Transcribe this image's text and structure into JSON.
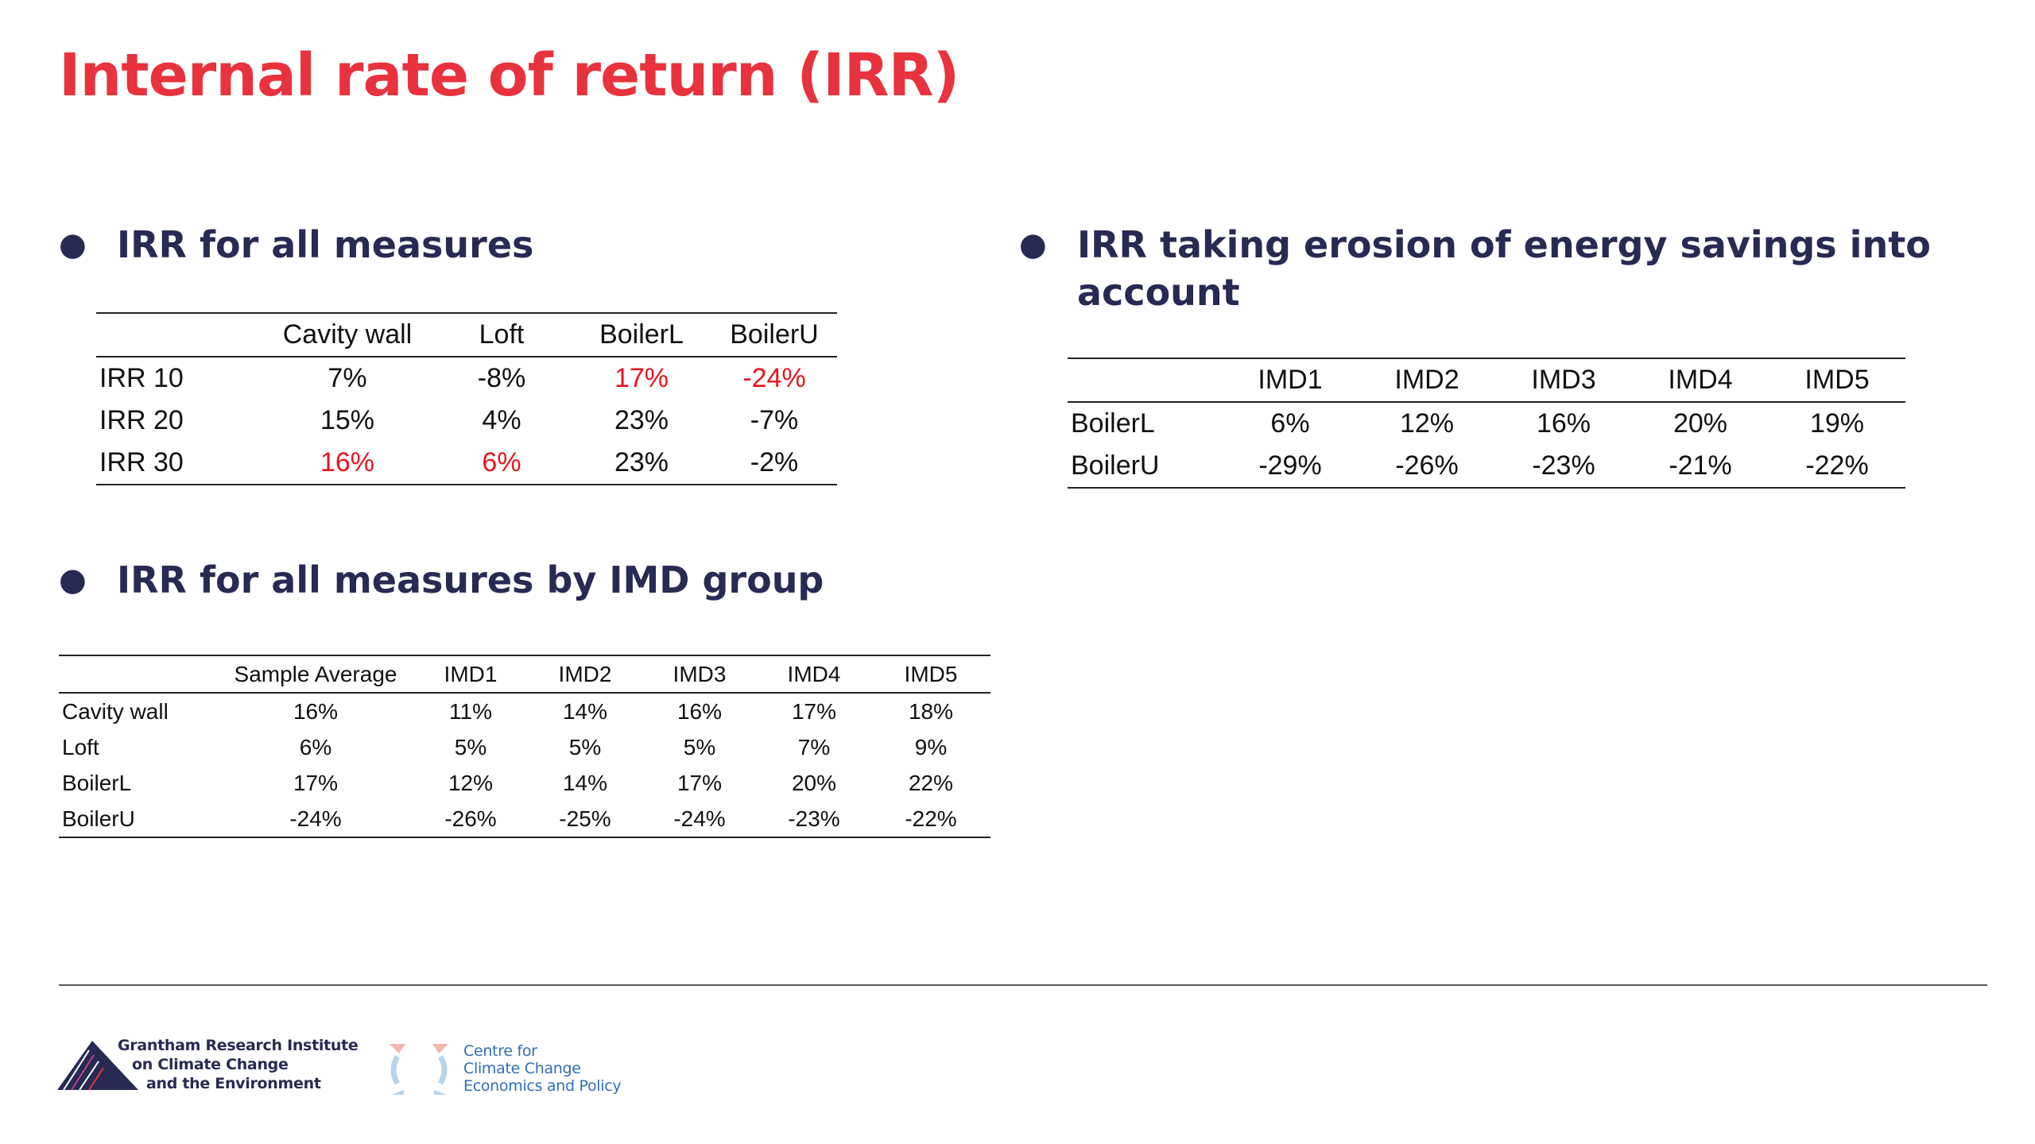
{
  "title": "Internal rate of return (IRR)",
  "bullets": {
    "b1": "IRR for all measures",
    "b2": "IRR taking erosion of energy savings into account",
    "b3": "IRR for all measures by IMD group"
  },
  "table1": {
    "headers": [
      "",
      "Cavity wall",
      "Loft",
      "BoilerL",
      "BoilerU"
    ],
    "rows": [
      {
        "label": "IRR 10",
        "cells": [
          "7%",
          "-8%",
          "17%",
          "-24%"
        ],
        "red": [
          false,
          false,
          true,
          true
        ]
      },
      {
        "label": "IRR 20",
        "cells": [
          "15%",
          "4%",
          "23%",
          "-7%"
        ],
        "red": [
          false,
          false,
          false,
          false
        ]
      },
      {
        "label": "IRR 30",
        "cells": [
          "16%",
          "6%",
          "23%",
          "-2%"
        ],
        "red": [
          true,
          true,
          false,
          false
        ]
      }
    ]
  },
  "table2": {
    "headers": [
      "",
      "IMD1",
      "IMD2",
      "IMD3",
      "IMD4",
      "IMD5"
    ],
    "rows": [
      {
        "label": "BoilerL",
        "cells": [
          "6%",
          "12%",
          "16%",
          "20%",
          "19%"
        ]
      },
      {
        "label": "BoilerU",
        "cells": [
          "-29%",
          "-26%",
          "-23%",
          "-21%",
          "-22%"
        ]
      }
    ]
  },
  "table3": {
    "headers": [
      "",
      "Sample Average",
      "IMD1",
      "IMD2",
      "IMD3",
      "IMD4",
      "IMD5"
    ],
    "rows": [
      {
        "label": "Cavity wall",
        "cells": [
          "16%",
          "11%",
          "14%",
          "16%",
          "17%",
          "18%"
        ]
      },
      {
        "label": "Loft",
        "cells": [
          "6%",
          "5%",
          "5%",
          "5%",
          "7%",
          "9%"
        ]
      },
      {
        "label": "BoilerL",
        "cells": [
          "17%",
          "12%",
          "14%",
          "17%",
          "20%",
          "22%"
        ]
      },
      {
        "label": "BoilerU",
        "cells": [
          "-24%",
          "-26%",
          "-25%",
          "-24%",
          "-23%",
          "-22%"
        ]
      }
    ]
  },
  "footer": {
    "grantham_lines": [
      "Grantham Research Institute",
      "on Climate Change",
      "and the Environment"
    ],
    "cccep_lines": [
      "Centre for",
      "Climate Change",
      "Economics and Policy"
    ]
  },
  "colors": {
    "title": "#e8323d",
    "heading": "#272a52",
    "highlight": "#e8141e",
    "cccep": "#2f6fb5"
  }
}
